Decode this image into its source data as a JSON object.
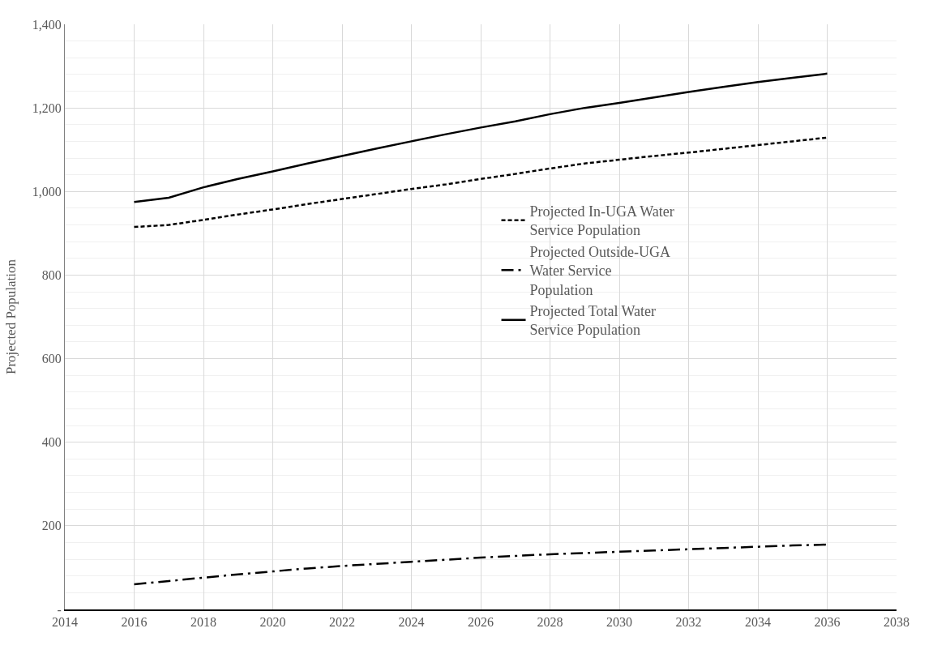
{
  "chart_data": {
    "type": "line",
    "ylabel": "Projected Population",
    "x": [
      2016,
      2017,
      2018,
      2019,
      2020,
      2021,
      2022,
      2023,
      2024,
      2025,
      2026,
      2027,
      2028,
      2029,
      2030,
      2031,
      2032,
      2033,
      2034,
      2035,
      2036
    ],
    "series": [
      {
        "name": "Projected In-UGA Water Service Population",
        "color": "#000000",
        "line_style": "dashed",
        "values": [
          915,
          920,
          932,
          945,
          957,
          970,
          982,
          994,
          1006,
          1017,
          1030,
          1042,
          1055,
          1067,
          1076,
          1085,
          1093,
          1102,
          1111,
          1120,
          1129
        ]
      },
      {
        "name": "Projected Outside-UGA Water Service Population",
        "color": "#000000",
        "line_style": "dashdot",
        "values": [
          60,
          68,
          76,
          84,
          91,
          98,
          104,
          109,
          114,
          119,
          124,
          128,
          132,
          135,
          138,
          141,
          144,
          147,
          150,
          153,
          155
        ]
      },
      {
        "name": "Projected Total Water Service Population",
        "color": "#000000",
        "line_style": "solid",
        "values": [
          975,
          985,
          1010,
          1030,
          1048,
          1067,
          1085,
          1103,
          1120,
          1137,
          1153,
          1168,
          1185,
          1200,
          1212,
          1225,
          1238,
          1250,
          1262,
          1272,
          1282
        ]
      }
    ],
    "xlim": [
      2014,
      2038
    ],
    "xticks": [
      2014,
      2016,
      2018,
      2020,
      2022,
      2024,
      2026,
      2028,
      2030,
      2032,
      2034,
      2036,
      2038
    ],
    "ylim": [
      0,
      1400
    ],
    "yticks": [
      {
        "value": 0,
        "label": "-"
      },
      200,
      400,
      600,
      800,
      {
        "value": 1000,
        "label": "1,000"
      },
      {
        "value": 1200,
        "label": "1,200"
      },
      {
        "value": 1400,
        "label": "1,400"
      }
    ],
    "grid": true,
    "legend": "right",
    "marker": "none"
  }
}
